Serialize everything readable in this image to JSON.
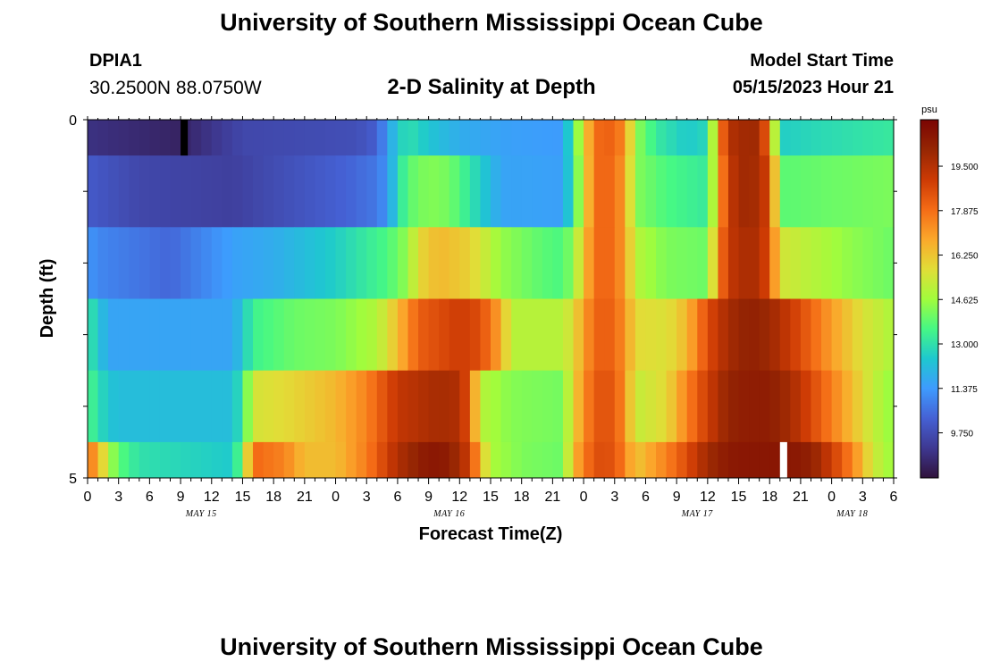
{
  "header": {
    "title": "University of Southern Mississippi Ocean Cube",
    "station_id": "DPIA1",
    "coords": "30.2500N  88.0750W",
    "chart_title": "2-D Salinity at Depth",
    "model_start_label": "Model Start Time",
    "model_start_value": "05/15/2023 Hour 21"
  },
  "footer": {
    "title": "University of Southern Mississippi Ocean Cube"
  },
  "colors": {
    "scale": [
      "#30123b",
      "#3e3891",
      "#4561d4",
      "#3e9bfe",
      "#1ec8cf",
      "#46f884",
      "#a2fc3c",
      "#e1dd37",
      "#fba72b",
      "#f46b16",
      "#cc3a04",
      "#962603",
      "#7a0403"
    ]
  },
  "chart_data": {
    "type": "heatmap",
    "title": "2-D Salinity at Depth",
    "xlabel": "Forecast Time(Z)",
    "ylabel": "Depth (ft)",
    "y_ticks": [
      "0",
      "5"
    ],
    "x_tick_labels": [
      "0",
      "3",
      "6",
      "9",
      "12",
      "15",
      "18",
      "21",
      "0",
      "3",
      "6",
      "9",
      "12",
      "15",
      "18",
      "21",
      "0",
      "3",
      "6",
      "9",
      "12",
      "15",
      "18",
      "21",
      "0",
      "3",
      "6"
    ],
    "date_labels": [
      {
        "label": "MAY 15",
        "hour": 11
      },
      {
        "label": "MAY 16",
        "hour": 35
      },
      {
        "label": "MAY 17",
        "hour": 59
      },
      {
        "label": "MAY 18",
        "hour": 74
      }
    ],
    "hours_range": [
      0,
      78
    ],
    "rows": 5,
    "colorbar": {
      "unit": "psu",
      "min": 8.1,
      "max": 21.2,
      "ticks": [
        "19.500",
        "17.875",
        "16.250",
        "14.625",
        "13.000",
        "11.375",
        "9.750"
      ],
      "tick_values": [
        19.5,
        17.875,
        16.25,
        14.625,
        13.0,
        11.375,
        9.75
      ]
    },
    "missing": [
      {
        "row": 0,
        "hour": 9,
        "color": "#000000"
      },
      {
        "row": 4,
        "hour": 67,
        "color": "#ffffff"
      }
    ],
    "knots": [
      [
        [
          0,
          9.0
        ],
        [
          9,
          8.6
        ],
        [
          15,
          9.6
        ],
        [
          26,
          9.8
        ],
        [
          28,
          10.2
        ],
        [
          29,
          11.4
        ],
        [
          30,
          12.5
        ],
        [
          31,
          13.0
        ],
        [
          33,
          12.4
        ],
        [
          36,
          11.8
        ],
        [
          41,
          11.5
        ],
        [
          46,
          11.4
        ],
        [
          47,
          13.5
        ],
        [
          49,
          17.8
        ],
        [
          50,
          18.2
        ],
        [
          51,
          18.0
        ],
        [
          52,
          17.3
        ],
        [
          53,
          14.5
        ],
        [
          55,
          13.2
        ],
        [
          58,
          12.5
        ],
        [
          60,
          12.8
        ],
        [
          61,
          17.0
        ],
        [
          62,
          19.5
        ],
        [
          64,
          20.0
        ],
        [
          65,
          19.8
        ],
        [
          66,
          17.5
        ],
        [
          67,
          12.6
        ],
        [
          70,
          12.8
        ],
        [
          78,
          13.2
        ]
      ],
      [
        [
          0,
          10.1
        ],
        [
          5,
          9.6
        ],
        [
          14,
          9.4
        ],
        [
          25,
          10.3
        ],
        [
          28,
          10.7
        ],
        [
          29,
          11.3
        ],
        [
          30,
          12.8
        ],
        [
          31,
          13.8
        ],
        [
          33,
          14.3
        ],
        [
          35,
          14.1
        ],
        [
          40,
          11.6
        ],
        [
          46,
          11.5
        ],
        [
          47,
          13.2
        ],
        [
          49,
          17.8
        ],
        [
          50,
          18.2
        ],
        [
          51,
          17.8
        ],
        [
          52,
          17.0
        ],
        [
          53,
          14.3
        ],
        [
          56,
          13.6
        ],
        [
          60,
          13.2
        ],
        [
          61,
          16.5
        ],
        [
          62,
          19.2
        ],
        [
          64,
          20.1
        ],
        [
          65,
          19.5
        ],
        [
          66,
          18.8
        ],
        [
          67,
          13.8
        ],
        [
          72,
          14.0
        ],
        [
          78,
          14.2
        ]
      ],
      [
        [
          0,
          11.3
        ],
        [
          1,
          11.0
        ],
        [
          8,
          10.4
        ],
        [
          14,
          11.5
        ],
        [
          18,
          11.8
        ],
        [
          24,
          12.6
        ],
        [
          29,
          13.6
        ],
        [
          31,
          14.5
        ],
        [
          32,
          15.8
        ],
        [
          34,
          16.5
        ],
        [
          37,
          16.0
        ],
        [
          40,
          14.5
        ],
        [
          44,
          13.8
        ],
        [
          46,
          13.6
        ],
        [
          47,
          14.5
        ],
        [
          49,
          17.8
        ],
        [
          50,
          18.2
        ],
        [
          51,
          17.8
        ],
        [
          52,
          17.0
        ],
        [
          53,
          15.0
        ],
        [
          56,
          14.2
        ],
        [
          60,
          14.0
        ],
        [
          61,
          17.3
        ],
        [
          62,
          19.2
        ],
        [
          64,
          19.8
        ],
        [
          65,
          19.5
        ],
        [
          66,
          18.5
        ],
        [
          67,
          15.5
        ],
        [
          70,
          15.0
        ],
        [
          74,
          14.4
        ],
        [
          78,
          14.0
        ]
      ],
      [
        [
          0,
          13.2
        ],
        [
          1,
          12.5
        ],
        [
          2,
          11.6
        ],
        [
          14,
          11.6
        ],
        [
          15,
          12.4
        ],
        [
          16,
          13.4
        ],
        [
          20,
          14.0
        ],
        [
          24,
          14.2
        ],
        [
          28,
          14.9
        ],
        [
          30,
          16.4
        ],
        [
          32,
          18.2
        ],
        [
          36,
          19.0
        ],
        [
          38,
          18.6
        ],
        [
          40,
          16.8
        ],
        [
          41,
          15.0
        ],
        [
          46,
          15.0
        ],
        [
          47,
          15.8
        ],
        [
          49,
          18.0
        ],
        [
          50,
          18.3
        ],
        [
          51,
          18.0
        ],
        [
          52,
          17.2
        ],
        [
          53,
          15.8
        ],
        [
          56,
          15.6
        ],
        [
          58,
          16.5
        ],
        [
          60,
          18.6
        ],
        [
          62,
          19.8
        ],
        [
          64,
          20.3
        ],
        [
          66,
          20.0
        ],
        [
          69,
          18.6
        ],
        [
          72,
          17.0
        ],
        [
          75,
          15.6
        ],
        [
          78,
          14.8
        ]
      ],
      [
        [
          0,
          13.6
        ],
        [
          1,
          13.0
        ],
        [
          2,
          12.4
        ],
        [
          3,
          12.2
        ],
        [
          14,
          12.2
        ],
        [
          15,
          13.2
        ],
        [
          16,
          15.5
        ],
        [
          20,
          15.9
        ],
        [
          24,
          16.5
        ],
        [
          27,
          17.5
        ],
        [
          30,
          19.2
        ],
        [
          34,
          19.8
        ],
        [
          36,
          19.6
        ],
        [
          37,
          18.2
        ],
        [
          38,
          15.0
        ],
        [
          41,
          14.3
        ],
        [
          46,
          14.1
        ],
        [
          47,
          16.0
        ],
        [
          49,
          18.3
        ],
        [
          50,
          18.5
        ],
        [
          51,
          18.3
        ],
        [
          52,
          17.2
        ],
        [
          53,
          15.2
        ],
        [
          56,
          15.8
        ],
        [
          58,
          17.5
        ],
        [
          60,
          19.0
        ],
        [
          62,
          20.2
        ],
        [
          64,
          20.4
        ],
        [
          66,
          20.4
        ],
        [
          68,
          19.8
        ],
        [
          70,
          18.7
        ],
        [
          73,
          17.0
        ],
        [
          76,
          15.2
        ],
        [
          78,
          14.4
        ]
      ],
      [
        [
          0,
          17.8
        ],
        [
          1,
          16.8
        ],
        [
          2,
          14.9
        ],
        [
          3,
          13.8
        ],
        [
          5,
          13.0
        ],
        [
          14,
          12.5
        ],
        [
          15,
          14.2
        ],
        [
          16,
          18.0
        ],
        [
          19,
          17.5
        ],
        [
          21,
          16.4
        ],
        [
          24,
          16.4
        ],
        [
          27,
          17.6
        ],
        [
          30,
          19.6
        ],
        [
          33,
          20.6
        ],
        [
          35,
          20.4
        ],
        [
          37,
          19.0
        ],
        [
          38,
          16.5
        ],
        [
          39,
          14.8
        ],
        [
          42,
          14.2
        ],
        [
          46,
          14.0
        ],
        [
          47,
          16.5
        ],
        [
          49,
          18.5
        ],
        [
          50,
          18.6
        ],
        [
          51,
          18.4
        ],
        [
          52,
          17.5
        ],
        [
          53,
          16.2
        ],
        [
          56,
          17.5
        ],
        [
          58,
          18.6
        ],
        [
          60,
          19.9
        ],
        [
          62,
          20.5
        ],
        [
          64,
          20.6
        ],
        [
          66,
          20.6
        ],
        [
          68,
          20.6
        ],
        [
          70,
          20.3
        ],
        [
          72,
          19.0
        ],
        [
          74,
          17.5
        ],
        [
          76,
          15.4
        ],
        [
          78,
          14.5
        ]
      ]
    ]
  }
}
